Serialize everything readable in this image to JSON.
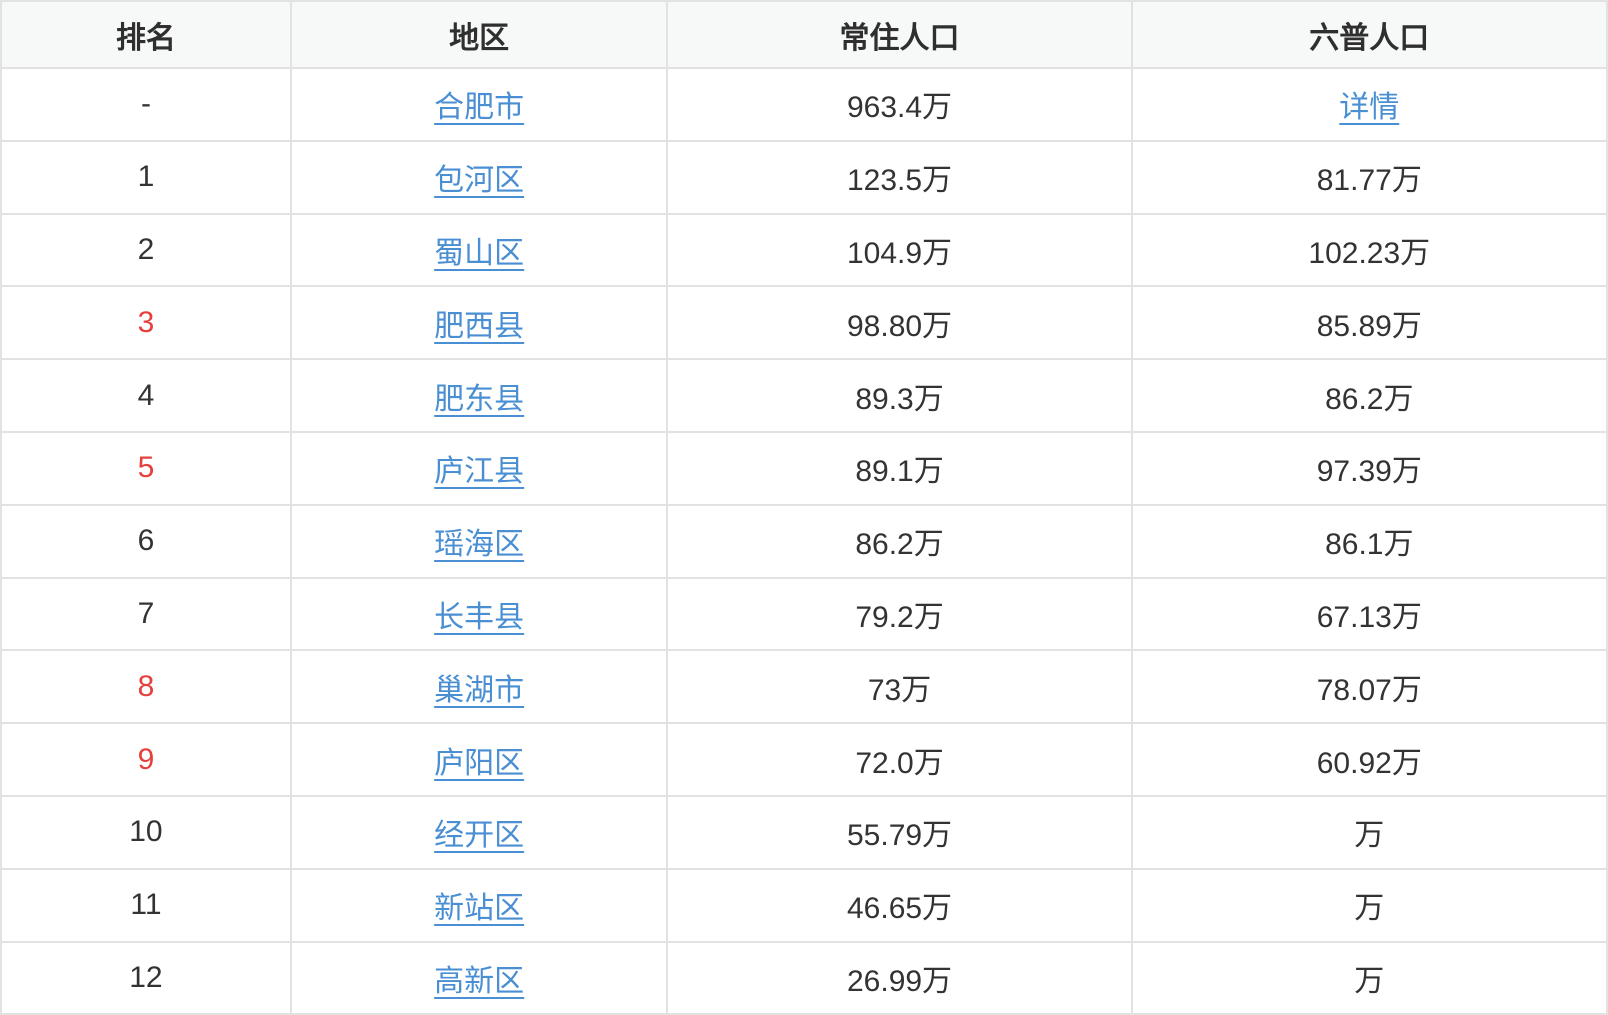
{
  "colors": {
    "link_color": "#4a8fd3",
    "rank_red": "#e4403c",
    "header_bg": "#f7f8f8",
    "border_color": "#e2e2e2",
    "text_color": "#333333"
  },
  "table": {
    "columns": [
      {
        "label": "排名"
      },
      {
        "label": "地区"
      },
      {
        "label": "常住人口"
      },
      {
        "label": "六普人口"
      }
    ],
    "rows": [
      {
        "rank": "-",
        "rank_red": false,
        "region": "合肥市",
        "resident": "963.4万",
        "census": "详情",
        "census_is_link": true
      },
      {
        "rank": "1",
        "rank_red": false,
        "region": "包河区",
        "resident": "123.5万",
        "census": "81.77万",
        "census_is_link": false
      },
      {
        "rank": "2",
        "rank_red": false,
        "region": "蜀山区",
        "resident": "104.9万",
        "census": "102.23万",
        "census_is_link": false
      },
      {
        "rank": "3",
        "rank_red": true,
        "region": "肥西县",
        "resident": "98.80万",
        "census": "85.89万",
        "census_is_link": false
      },
      {
        "rank": "4",
        "rank_red": false,
        "region": "肥东县",
        "resident": "89.3万",
        "census": "86.2万",
        "census_is_link": false
      },
      {
        "rank": "5",
        "rank_red": true,
        "region": "庐江县",
        "resident": "89.1万",
        "census": "97.39万",
        "census_is_link": false
      },
      {
        "rank": "6",
        "rank_red": false,
        "region": "瑶海区",
        "resident": "86.2万",
        "census": "86.1万",
        "census_is_link": false
      },
      {
        "rank": "7",
        "rank_red": false,
        "region": "长丰县",
        "resident": "79.2万",
        "census": "67.13万",
        "census_is_link": false
      },
      {
        "rank": "8",
        "rank_red": true,
        "region": "巢湖市",
        "resident": "73万",
        "census": "78.07万",
        "census_is_link": false
      },
      {
        "rank": "9",
        "rank_red": true,
        "region": "庐阳区",
        "resident": "72.0万",
        "census": "60.92万",
        "census_is_link": false
      },
      {
        "rank": "10",
        "rank_red": false,
        "region": "经开区",
        "resident": "55.79万",
        "census": "万",
        "census_is_link": false
      },
      {
        "rank": "11",
        "rank_red": false,
        "region": "新站区",
        "resident": "46.65万",
        "census": "万",
        "census_is_link": false
      },
      {
        "rank": "12",
        "rank_red": false,
        "region": "高新区",
        "resident": "26.99万",
        "census": "万",
        "census_is_link": false
      }
    ]
  }
}
